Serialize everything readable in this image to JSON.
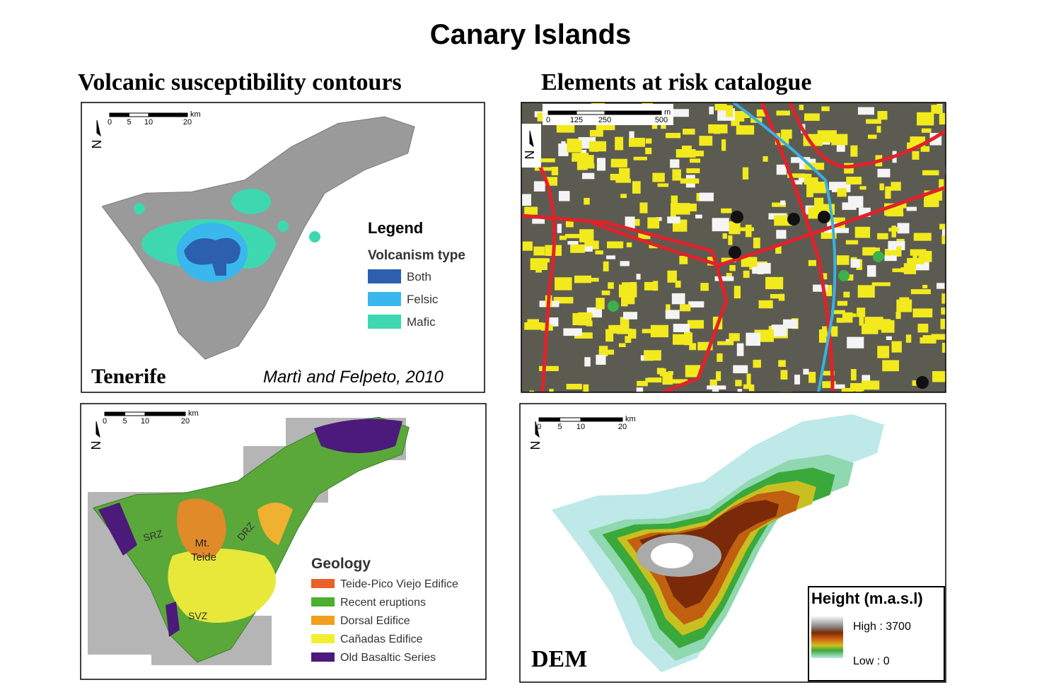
{
  "title": "Canary Islands",
  "panels": [
    {
      "heading": "Volcanic susceptibility contours",
      "scale": [
        0,
        5,
        10,
        20
      ],
      "scale_unit": "km",
      "north": "N",
      "legend_title": "Legend",
      "legend_subtitle": "Volcanism type",
      "legend": [
        {
          "label": "Both",
          "color": "#2c5fae"
        },
        {
          "label": "Felsic",
          "color": "#3ab8ee"
        },
        {
          "label": "Mafic",
          "color": "#3ed8b0"
        }
      ],
      "label": "Tenerife",
      "credit": "Martì and Felpeto, 2010"
    },
    {
      "heading": "Elements at risk catalogue",
      "scale": [
        0,
        125,
        250,
        500
      ],
      "scale_unit": "m",
      "north": "N"
    },
    {
      "scale": [
        0,
        5,
        10,
        20
      ],
      "scale_unit": "km",
      "north": "N",
      "labels": [
        "SRZ",
        "Mt.",
        "Teide",
        "DRZ",
        "SVZ"
      ],
      "legend_title": "Geology",
      "legend": [
        {
          "label": "Teide-Pico Viejo Edifice",
          "color": "#e8602a"
        },
        {
          "label": "Recent eruptions",
          "color": "#4caf2f"
        },
        {
          "label": "Dorsal Edifice",
          "color": "#f0a020"
        },
        {
          "label": "Cañadas Edifice",
          "color": "#f0f030"
        },
        {
          "label": "Old Basaltic Series",
          "color": "#4b1a7a"
        }
      ]
    },
    {
      "scale": [
        0,
        5,
        10,
        20
      ],
      "scale_unit": "km",
      "north": "N",
      "label": "DEM",
      "legend_title": "Height (m.a.s.l)",
      "legend_high": "High : 3700",
      "legend_low": "Low : 0"
    }
  ]
}
